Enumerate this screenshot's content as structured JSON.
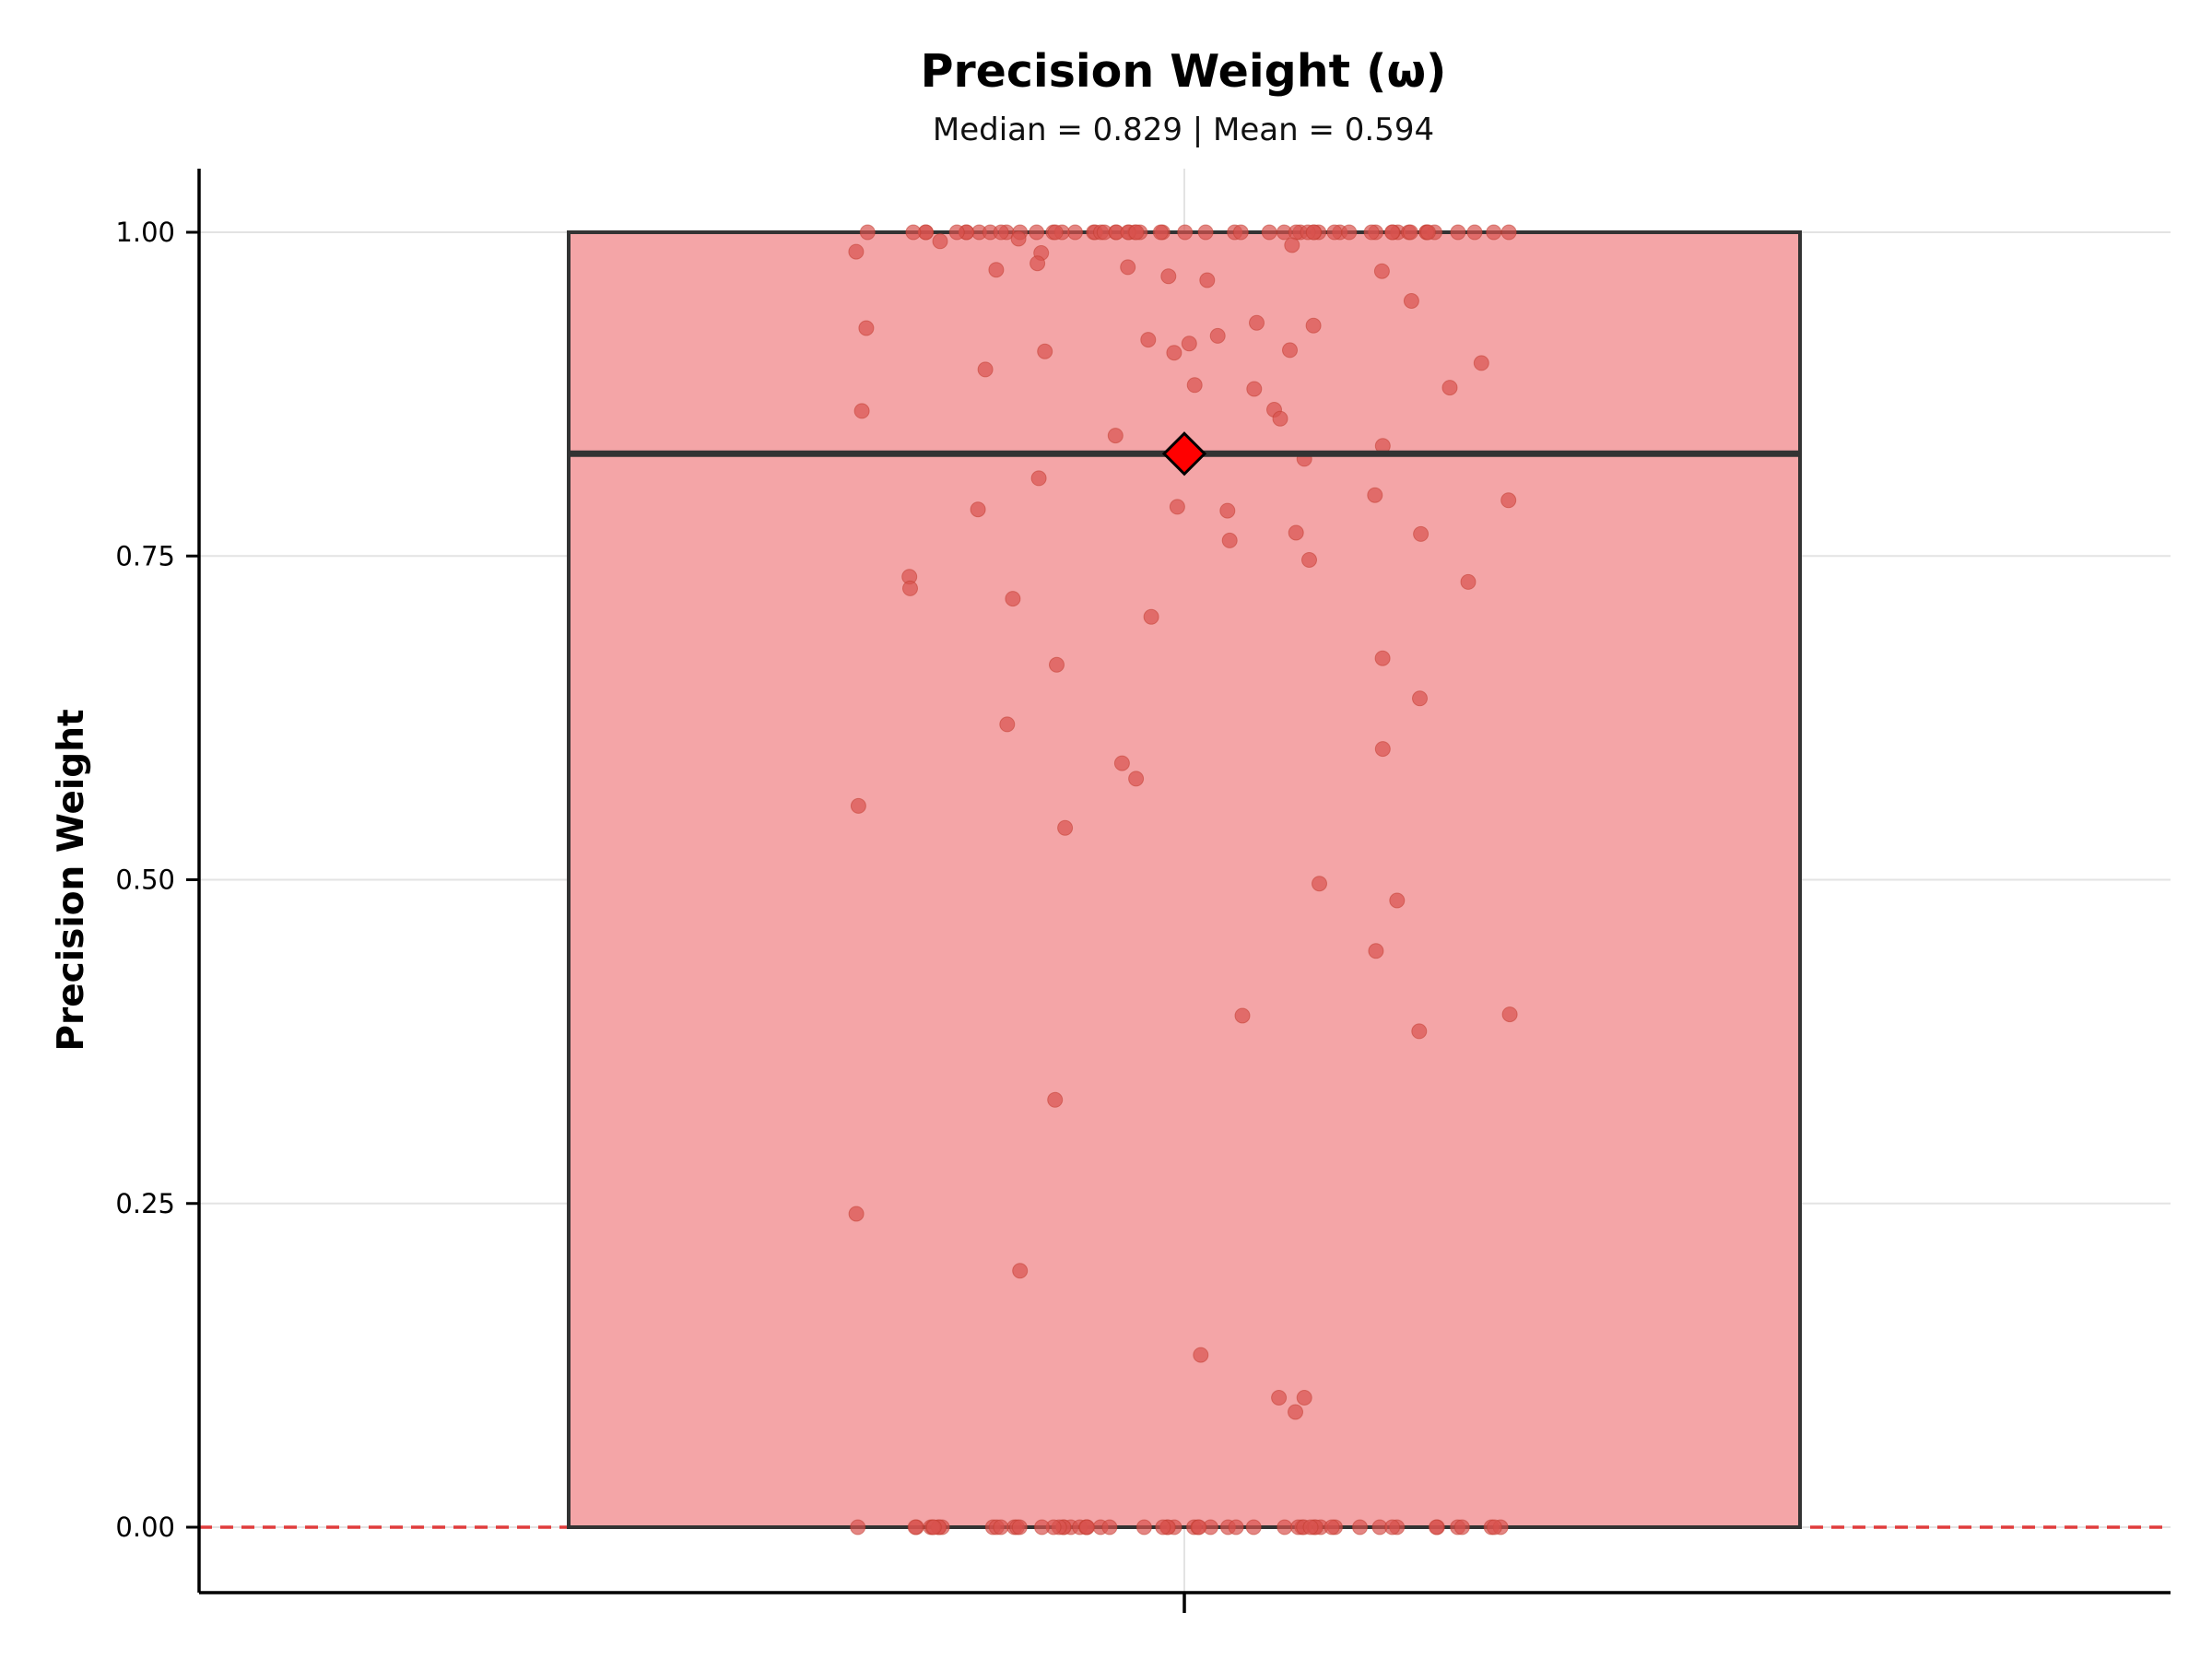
{
  "chart_data": {
    "type": "box",
    "title": "Precision Weight (ω)",
    "subtitle": "Median = 0.829 | Mean = 0.594",
    "ylabel": "Precision Weight",
    "xlabel": "",
    "ylim": [
      -0.05,
      1.05
    ],
    "yticks": [
      0.0,
      0.25,
      0.5,
      0.75,
      1.0
    ],
    "ytick_labels": [
      "0.00",
      "0.25",
      "0.50",
      "0.75",
      "1.00"
    ],
    "grid": true,
    "box": {
      "q1": 0.0,
      "median": 0.829,
      "q3": 1.0,
      "mean": 0.594
    },
    "reference_line": {
      "y": 0.0,
      "style": "dashed",
      "color": "#e03c3c"
    },
    "colors": {
      "box_fill": "#f4a5a7",
      "box_edge": "#333333",
      "points": "#d9534f",
      "mean_marker": "#ff0000"
    },
    "points": [
      1.0,
      1.0,
      1.0,
      1.0,
      1.0,
      1.0,
      1.0,
      1.0,
      1.0,
      1.0,
      1.0,
      1.0,
      1.0,
      1.0,
      1.0,
      1.0,
      1.0,
      1.0,
      1.0,
      1.0,
      1.0,
      1.0,
      1.0,
      1.0,
      1.0,
      1.0,
      1.0,
      1.0,
      1.0,
      1.0,
      1.0,
      1.0,
      1.0,
      1.0,
      1.0,
      1.0,
      1.0,
      1.0,
      1.0,
      1.0,
      1.0,
      1.0,
      1.0,
      1.0,
      1.0,
      1.0,
      1.0,
      1.0,
      1.0,
      1.0,
      1.0,
      1.0,
      1.0,
      1.0,
      1.0,
      1.0,
      1.0,
      1.0,
      1.0,
      1.0,
      0.995,
      0.993,
      0.99,
      0.985,
      0.984,
      0.976,
      0.973,
      0.971,
      0.97,
      0.966,
      0.963,
      0.947,
      0.93,
      0.928,
      0.926,
      0.92,
      0.917,
      0.914,
      0.909,
      0.908,
      0.907,
      0.899,
      0.894,
      0.882,
      0.88,
      0.879,
      0.862,
      0.863,
      0.856,
      0.843,
      0.835,
      0.825,
      0.81,
      0.797,
      0.793,
      0.788,
      0.786,
      0.785,
      0.768,
      0.767,
      0.762,
      0.747,
      0.734,
      0.73,
      0.725,
      0.717,
      0.703,
      0.671,
      0.666,
      0.64,
      0.62,
      0.601,
      0.59,
      0.578,
      0.557,
      0.54,
      0.497,
      0.484,
      0.445,
      0.396,
      0.395,
      0.383,
      0.33,
      0.242,
      0.198,
      0.133,
      0.1,
      0.1,
      0.089,
      0.0,
      0.0,
      0.0,
      0.0,
      0.0,
      0.0,
      0.0,
      0.0,
      0.0,
      0.0,
      0.0,
      0.0,
      0.0,
      0.0,
      0.0,
      0.0,
      0.0,
      0.0,
      0.0,
      0.0,
      0.0,
      0.0,
      0.0,
      0.0,
      0.0,
      0.0,
      0.0,
      0.0,
      0.0,
      0.0,
      0.0,
      0.0,
      0.0,
      0.0,
      0.0,
      0.0,
      0.0,
      0.0,
      0.0,
      0.0,
      0.0,
      0.0,
      0.0,
      0.0,
      0.0,
      0.0,
      0.0,
      0.0,
      0.0,
      0.0,
      0.0,
      0.0,
      0.0,
      0.0,
      0.0,
      0.0,
      0.0,
      0.0,
      0.0,
      0.0
    ]
  }
}
